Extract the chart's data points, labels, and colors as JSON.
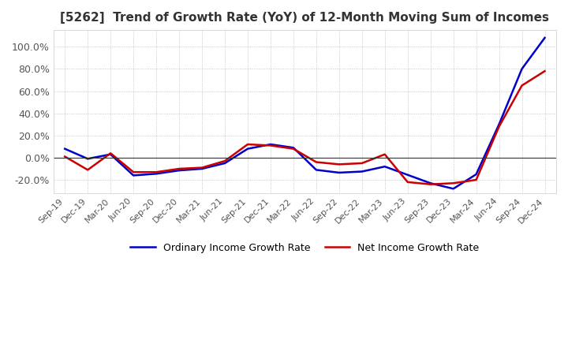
{
  "title": "[5262]  Trend of Growth Rate (YoY) of 12-Month Moving Sum of Incomes",
  "title_fontsize": 11,
  "ylim": [
    -32,
    115
  ],
  "yticks": [
    -20.0,
    0.0,
    20.0,
    40.0,
    60.0,
    80.0,
    100.0
  ],
  "ytick_labels": [
    "-20.0%",
    "0.0%",
    "20.0%",
    "40.0%",
    "60.0%",
    "80.0%",
    "100.0%"
  ],
  "background_color": "#ffffff",
  "plot_bg_color": "#ffffff",
  "grid_color": "#aaaaaa",
  "legend_labels": [
    "Ordinary Income Growth Rate",
    "Net Income Growth Rate"
  ],
  "legend_colors": [
    "#0000cc",
    "#cc0000"
  ],
  "x_labels": [
    "Sep-19",
    "Dec-19",
    "Mar-20",
    "Jun-20",
    "Sep-20",
    "Dec-20",
    "Mar-21",
    "Jun-21",
    "Sep-21",
    "Dec-21",
    "Mar-22",
    "Jun-22",
    "Sep-22",
    "Dec-22",
    "Mar-23",
    "Jun-23",
    "Sep-23",
    "Dec-23",
    "Mar-24",
    "Jun-24",
    "Sep-24",
    "Dec-24"
  ],
  "ordinary_income": [
    8.0,
    -1.0,
    3.0,
    -16.0,
    -14.5,
    -11.5,
    -10.0,
    -5.0,
    8.0,
    12.0,
    9.0,
    -11.0,
    -13.5,
    -12.5,
    -8.0,
    -15.5,
    -23.0,
    -28.0,
    -15.0,
    30.0,
    80.0,
    108.0
  ],
  "net_income": [
    1.0,
    -11.0,
    4.0,
    -13.0,
    -13.0,
    -10.0,
    -9.0,
    -3.0,
    12.0,
    11.0,
    8.0,
    -4.0,
    -6.0,
    -5.0,
    3.0,
    -22.0,
    -24.0,
    -23.0,
    -20.0,
    28.0,
    65.0,
    78.0
  ]
}
